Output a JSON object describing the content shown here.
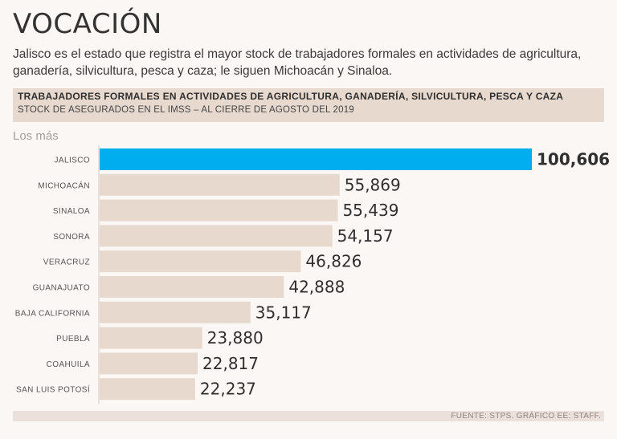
{
  "header": {
    "title": "VOCACIÓN",
    "subtitle": "Jalisco es el estado que registra el mayor stock de trabajadores formales en actividades de agricultura, ganadería, silvicultura, pesca y caza; le siguen Michoacán y Sinaloa."
  },
  "chart_data": {
    "type": "bar",
    "orientation": "horizontal",
    "title": "TRABAJADORES FORMALES EN ACTIVIDADES DE AGRICULTURA, GANADERÍA, SILVICULTURA, PESCA Y CAZA",
    "subtitle": "STOCK DE ASEGURADOS EN EL IMSS – AL CIERRE DE AGOSTO DEL 2019",
    "section_label": "Los más",
    "categories": [
      "JALISCO",
      "MICHOACÁN",
      "SINALOA",
      "SONORA",
      "VERACRUZ",
      "GUANAJUATO",
      "BAJA CALIFORNIA",
      "PUEBLA",
      "COAHUILA",
      "SAN LUIS POTOSÍ"
    ],
    "values": [
      100606,
      55869,
      55439,
      54157,
      46826,
      42888,
      35117,
      23880,
      22817,
      22237
    ],
    "value_labels": [
      "100,606",
      "55,869",
      "55,439",
      "54,157",
      "46,826",
      "42,888",
      "35,117",
      "23,880",
      "22,817",
      "22,237"
    ],
    "xlim": [
      0,
      100606
    ],
    "grid": false,
    "colors": {
      "highlight": "#00aeef",
      "bar": "#e8d9cf",
      "axis": "#d9cbc2"
    }
  },
  "footer": {
    "source": "FUENTE: STPS.  GRÁFICO EE: STAFF."
  }
}
